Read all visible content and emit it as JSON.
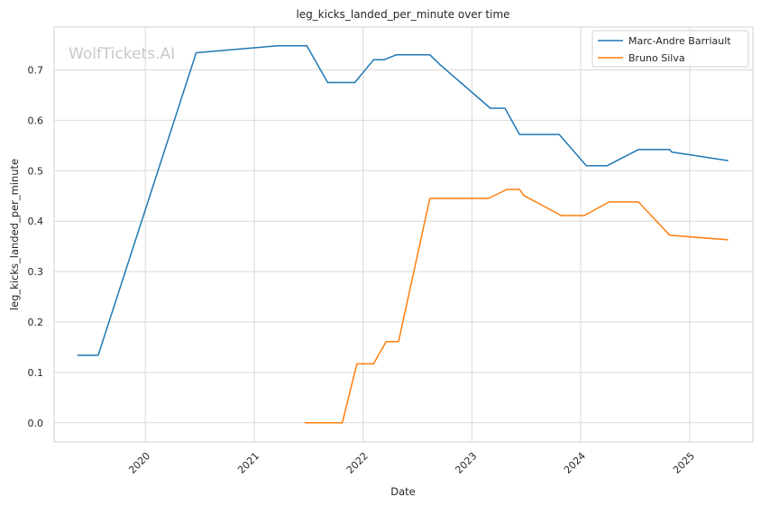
{
  "watermark": "WolfTickets.AI",
  "chart_data": {
    "type": "line",
    "title": "leg_kicks_landed_per_minute over time",
    "xlabel": "Date",
    "ylabel": "leg_kicks_landed_per_minute",
    "x_ticks": [
      "2020",
      "2021",
      "2022",
      "2023",
      "2024",
      "2025"
    ],
    "y_ticks": [
      "0.0",
      "0.1",
      "0.2",
      "0.3",
      "0.4",
      "0.5",
      "0.6",
      "0.7"
    ],
    "xlim": [
      "2019-03-01",
      "2025-08-01"
    ],
    "ylim": [
      -0.038,
      0.785
    ],
    "grid": true,
    "legend_position": "top-right",
    "series": [
      {
        "name": "Marc-Andre Barriault",
        "color": "#1f77b4",
        "points": [
          [
            "2019-05-18",
            0.134
          ],
          [
            "2019-07-27",
            0.134
          ],
          [
            "2020-06-20",
            0.734
          ],
          [
            "2021-03-20",
            0.748
          ],
          [
            "2021-06-26",
            0.748
          ],
          [
            "2021-09-04",
            0.675
          ],
          [
            "2021-12-04",
            0.675
          ],
          [
            "2022-02-05",
            0.72
          ],
          [
            "2022-03-12",
            0.72
          ],
          [
            "2022-04-23",
            0.73
          ],
          [
            "2022-08-13",
            0.73
          ],
          [
            "2022-09-17",
            0.71
          ],
          [
            "2023-03-04",
            0.624
          ],
          [
            "2023-04-22",
            0.624
          ],
          [
            "2023-06-10",
            0.572
          ],
          [
            "2023-10-21",
            0.572
          ],
          [
            "2024-01-20",
            0.51
          ],
          [
            "2024-03-30",
            0.51
          ],
          [
            "2024-07-13",
            0.542
          ],
          [
            "2024-10-26",
            0.542
          ],
          [
            "2024-11-02",
            0.537
          ],
          [
            "2025-05-10",
            0.52
          ]
        ]
      },
      {
        "name": "Bruno Silva",
        "color": "#ff7f0e",
        "points": [
          [
            "2021-06-19",
            0.0
          ],
          [
            "2021-10-23",
            0.0
          ],
          [
            "2021-12-11",
            0.117
          ],
          [
            "2022-02-05",
            0.117
          ],
          [
            "2022-03-19",
            0.161
          ],
          [
            "2022-04-30",
            0.161
          ],
          [
            "2022-08-13",
            0.445
          ],
          [
            "2023-02-25",
            0.445
          ],
          [
            "2023-04-29",
            0.463
          ],
          [
            "2023-06-10",
            0.463
          ],
          [
            "2023-06-24",
            0.451
          ],
          [
            "2023-10-28",
            0.411
          ],
          [
            "2024-01-13",
            0.411
          ],
          [
            "2024-04-06",
            0.438
          ],
          [
            "2024-07-13",
            0.438
          ],
          [
            "2024-10-26",
            0.372
          ],
          [
            "2025-05-10",
            0.363
          ]
        ]
      }
    ]
  }
}
